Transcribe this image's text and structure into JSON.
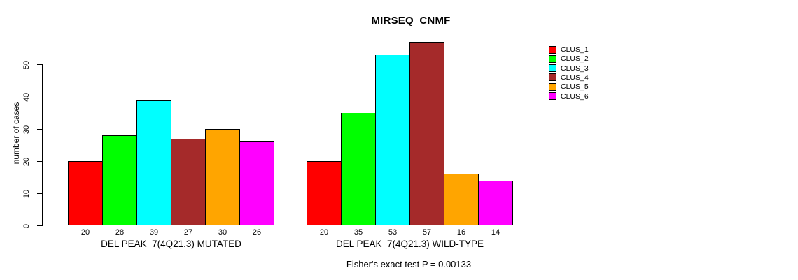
{
  "chart_data": {
    "type": "bar",
    "title": "MIRSEQ_CNMF",
    "ylabel": "number of cases",
    "ylim": [
      0,
      57
    ],
    "yticks": [
      0,
      10,
      20,
      30,
      40,
      50
    ],
    "grid": false,
    "legend_position": "right",
    "series_names": [
      "CLUS_1",
      "CLUS_2",
      "CLUS_3",
      "CLUS_4",
      "CLUS_5",
      "CLUS_6"
    ],
    "series_colors": [
      "#FF0000",
      "#00FF00",
      "#00FFFF",
      "#A52A2A",
      "#FFA500",
      "#FF00FF"
    ],
    "groups": [
      {
        "label": "DEL PEAK  7(4Q21.3) MUTATED",
        "values": [
          20,
          28,
          39,
          27,
          30,
          26
        ]
      },
      {
        "label": "DEL PEAK  7(4Q21.3) WILD-TYPE",
        "values": [
          20,
          35,
          53,
          57,
          16,
          14
        ]
      }
    ],
    "bar_value_labels_shown": true,
    "annotation": "Fisher's exact test P = 0.00133"
  }
}
